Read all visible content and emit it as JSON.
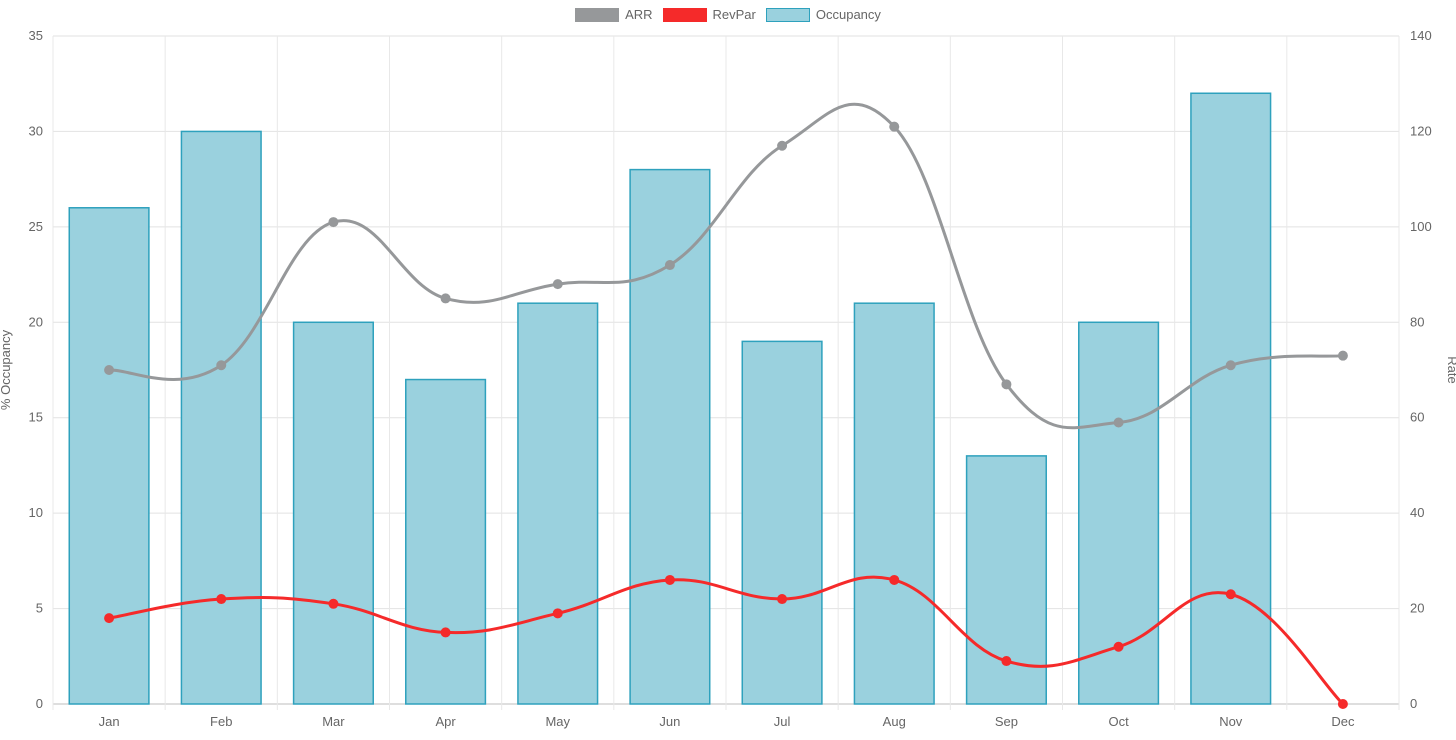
{
  "legend": [
    {
      "label": "ARR",
      "color": "#96989a"
    },
    {
      "label": "RevPar",
      "color": "#f52a2a"
    },
    {
      "label": "Occupancy",
      "color": "#9ad1de",
      "border": "#2ea1bd"
    }
  ],
  "chart_data": {
    "type": "bar",
    "categories": [
      "Jan",
      "Feb",
      "Mar",
      "Apr",
      "May",
      "Jun",
      "Jul",
      "Aug",
      "Sep",
      "Oct",
      "Nov",
      "Dec"
    ],
    "series": [
      {
        "name": "Occupancy",
        "type": "bar",
        "axis": "left",
        "color": "#9ad1de",
        "border": "#2ea1bd",
        "values": [
          26,
          30,
          20,
          17,
          21,
          28,
          19,
          21,
          13,
          20,
          32,
          null
        ]
      },
      {
        "name": "ARR",
        "type": "line",
        "axis": "right",
        "color": "#96989a",
        "values": [
          70,
          71,
          101,
          85,
          88,
          92,
          117,
          121,
          67,
          59,
          71,
          73
        ]
      },
      {
        "name": "RevPar",
        "type": "line",
        "axis": "right",
        "color": "#f52a2a",
        "values": [
          18,
          22,
          21,
          15,
          19,
          26,
          22,
          26,
          9,
          12,
          23,
          0
        ]
      }
    ],
    "ylabel_left": "% Occupancy",
    "ylabel_right": "Rate",
    "ylim_left": [
      0,
      35
    ],
    "yticks_left": [
      "0",
      "5",
      "10",
      "15",
      "20",
      "25",
      "30",
      "35"
    ],
    "ylim_right": [
      0,
      140
    ],
    "yticks_right": [
      "0",
      "20",
      "40",
      "60",
      "80",
      "100",
      "120",
      "140"
    ],
    "grid": true,
    "legend_position": "top"
  }
}
